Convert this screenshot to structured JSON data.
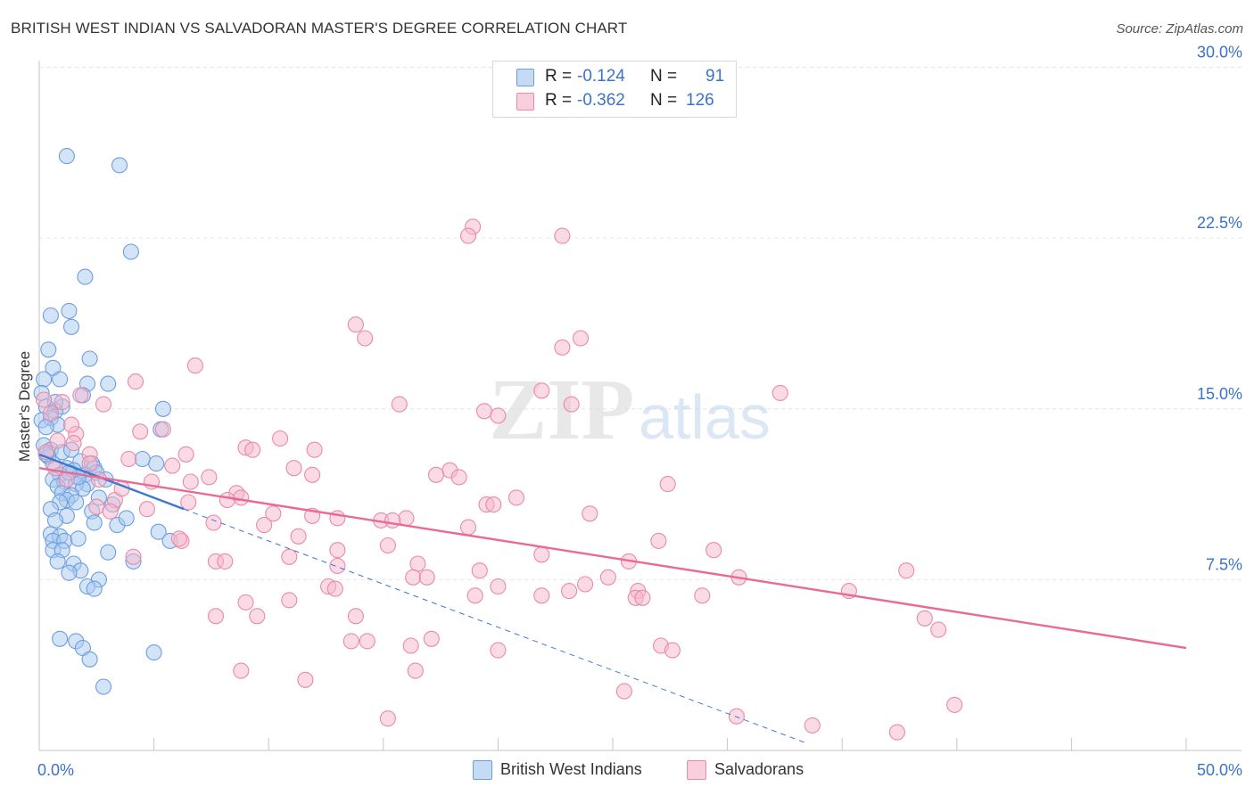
{
  "title": "BRITISH WEST INDIAN VS SALVADORAN MASTER'S DEGREE CORRELATION CHART",
  "source": "Source: ZipAtlas.com",
  "watermark": {
    "zip": "ZIP",
    "atlas": "atlas"
  },
  "colors": {
    "blue_fill": "#a9c9ef",
    "blue_stroke": "#6b9ee0",
    "blue_line": "#3a78d4",
    "pink_fill": "#f5b8cb",
    "pink_stroke": "#e88aa8",
    "pink_line": "#e86a95",
    "tick_text": "#3a73c9",
    "grid": "#e6e6e6"
  },
  "stats": {
    "blue": {
      "r_label": "R =",
      "r_value": "-0.124",
      "n_label": "N =",
      "n_value": "91"
    },
    "pink": {
      "r_label": "R =",
      "r_value": "-0.362",
      "n_label": "N =",
      "n_value": "126"
    }
  },
  "legend": {
    "blue": "British West Indians",
    "pink": "Salvadorans"
  },
  "chart_data": {
    "type": "scatter",
    "title": "BRITISH WEST INDIAN VS SALVADORAN MASTER'S DEGREE CORRELATION CHART",
    "xlabel": "",
    "ylabel": "Master's Degree",
    "xlim": [
      0,
      50
    ],
    "ylim": [
      0,
      31
    ],
    "x_tick_labels": [
      "0.0%",
      "50.0%"
    ],
    "y_ticks": [
      7.5,
      15.0,
      22.5,
      30.0
    ],
    "y_tick_labels": [
      "7.5%",
      "15.0%",
      "22.5%",
      "30.0%"
    ],
    "series": [
      {
        "name": "British West Indians",
        "color": "blue",
        "trend": {
          "x0": 0.0,
          "y0": 13.0,
          "x1": 6.3,
          "y1": 10.6
        },
        "trend_extension": {
          "x0": 6.3,
          "y0": 10.6,
          "x1": 33.5,
          "y1": 0.3
        },
        "points": [
          [
            1.2,
            26.1
          ],
          [
            3.5,
            25.7
          ],
          [
            4.0,
            21.9
          ],
          [
            2.0,
            20.8
          ],
          [
            0.5,
            19.1
          ],
          [
            1.3,
            19.3
          ],
          [
            1.4,
            18.6
          ],
          [
            0.4,
            17.6
          ],
          [
            2.2,
            17.2
          ],
          [
            0.6,
            16.8
          ],
          [
            0.2,
            16.3
          ],
          [
            0.9,
            16.3
          ],
          [
            3.0,
            16.1
          ],
          [
            2.1,
            16.1
          ],
          [
            1.9,
            15.6
          ],
          [
            0.1,
            15.7
          ],
          [
            0.3,
            15.1
          ],
          [
            1.0,
            15.1
          ],
          [
            5.4,
            15.0
          ],
          [
            0.7,
            14.9
          ],
          [
            0.5,
            14.6
          ],
          [
            0.8,
            14.3
          ],
          [
            0.1,
            14.5
          ],
          [
            0.3,
            14.2
          ],
          [
            5.3,
            14.1
          ],
          [
            0.2,
            13.4
          ],
          [
            0.5,
            13.2
          ],
          [
            1.0,
            13.1
          ],
          [
            1.4,
            13.2
          ],
          [
            0.4,
            12.9
          ],
          [
            0.6,
            12.6
          ],
          [
            1.8,
            12.7
          ],
          [
            2.3,
            12.6
          ],
          [
            5.1,
            12.6
          ],
          [
            4.5,
            12.8
          ],
          [
            1.2,
            12.4
          ],
          [
            2.4,
            12.4
          ],
          [
            1.5,
            12.3
          ],
          [
            2.0,
            12.1
          ],
          [
            0.9,
            12.1
          ],
          [
            1.7,
            12.0
          ],
          [
            2.5,
            12.2
          ],
          [
            0.6,
            11.9
          ],
          [
            1.1,
            11.8
          ],
          [
            2.1,
            11.7
          ],
          [
            0.8,
            11.6
          ],
          [
            1.6,
            11.7
          ],
          [
            1.9,
            11.5
          ],
          [
            1.0,
            11.3
          ],
          [
            1.4,
            11.2
          ],
          [
            1.2,
            11.0
          ],
          [
            2.6,
            11.1
          ],
          [
            0.9,
            10.9
          ],
          [
            1.6,
            10.9
          ],
          [
            3.2,
            10.8
          ],
          [
            0.5,
            10.6
          ],
          [
            2.3,
            10.5
          ],
          [
            1.2,
            10.3
          ],
          [
            0.7,
            10.1
          ],
          [
            2.4,
            10.0
          ],
          [
            3.4,
            9.9
          ],
          [
            0.5,
            9.5
          ],
          [
            0.9,
            9.4
          ],
          [
            5.2,
            9.6
          ],
          [
            5.7,
            9.2
          ],
          [
            0.6,
            9.2
          ],
          [
            1.1,
            9.2
          ],
          [
            1.7,
            9.3
          ],
          [
            0.6,
            8.8
          ],
          [
            1.0,
            8.8
          ],
          [
            3.0,
            8.7
          ],
          [
            0.8,
            8.3
          ],
          [
            4.1,
            8.3
          ],
          [
            1.5,
            8.2
          ],
          [
            1.8,
            7.9
          ],
          [
            1.3,
            7.8
          ],
          [
            2.6,
            7.5
          ],
          [
            2.1,
            7.2
          ],
          [
            2.4,
            7.1
          ],
          [
            0.9,
            4.9
          ],
          [
            1.6,
            4.8
          ],
          [
            1.9,
            4.5
          ],
          [
            5.0,
            4.3
          ],
          [
            2.2,
            4.0
          ],
          [
            2.8,
            2.8
          ],
          [
            1.7,
            12.0
          ],
          [
            0.3,
            13.0
          ],
          [
            1.3,
            12.2
          ],
          [
            0.7,
            15.3
          ],
          [
            2.9,
            11.9
          ],
          [
            3.8,
            10.2
          ]
        ]
      },
      {
        "name": "Salvadorans",
        "color": "pink",
        "trend": {
          "x0": 0.0,
          "y0": 12.4,
          "x1": 50.0,
          "y1": 4.5
        },
        "points": [
          [
            18.9,
            23.0
          ],
          [
            18.7,
            22.6
          ],
          [
            22.8,
            22.6
          ],
          [
            13.8,
            18.7
          ],
          [
            14.2,
            18.1
          ],
          [
            23.6,
            18.1
          ],
          [
            22.8,
            17.7
          ],
          [
            6.8,
            16.9
          ],
          [
            4.2,
            16.2
          ],
          [
            21.9,
            15.8
          ],
          [
            32.3,
            15.7
          ],
          [
            1.8,
            15.6
          ],
          [
            2.8,
            15.2
          ],
          [
            15.7,
            15.2
          ],
          [
            23.2,
            15.2
          ],
          [
            0.2,
            15.4
          ],
          [
            1.0,
            15.3
          ],
          [
            19.4,
            14.9
          ],
          [
            20.0,
            14.7
          ],
          [
            0.5,
            14.8
          ],
          [
            4.4,
            14.0
          ],
          [
            5.4,
            14.1
          ],
          [
            1.6,
            13.9
          ],
          [
            10.5,
            13.7
          ],
          [
            0.8,
            13.6
          ],
          [
            1.5,
            13.5
          ],
          [
            9.0,
            13.3
          ],
          [
            9.3,
            13.2
          ],
          [
            12.0,
            13.2
          ],
          [
            6.4,
            13.0
          ],
          [
            0.3,
            13.1
          ],
          [
            2.2,
            13.0
          ],
          [
            3.9,
            12.8
          ],
          [
            11.1,
            12.4
          ],
          [
            5.8,
            12.5
          ],
          [
            17.9,
            12.3
          ],
          [
            17.3,
            12.1
          ],
          [
            18.3,
            12.0
          ],
          [
            7.4,
            12.0
          ],
          [
            11.9,
            12.1
          ],
          [
            1.2,
            11.9
          ],
          [
            2.6,
            11.9
          ],
          [
            6.6,
            11.8
          ],
          [
            27.4,
            11.7
          ],
          [
            4.9,
            11.8
          ],
          [
            8.6,
            11.3
          ],
          [
            20.8,
            11.1
          ],
          [
            8.8,
            11.1
          ],
          [
            3.3,
            11.0
          ],
          [
            8.2,
            11.0
          ],
          [
            19.5,
            10.8
          ],
          [
            19.8,
            10.8
          ],
          [
            2.5,
            10.7
          ],
          [
            4.7,
            10.6
          ],
          [
            3.1,
            10.5
          ],
          [
            24.0,
            10.4
          ],
          [
            10.2,
            10.4
          ],
          [
            11.9,
            10.3
          ],
          [
            13.0,
            10.2
          ],
          [
            14.9,
            10.1
          ],
          [
            16.0,
            10.2
          ],
          [
            15.4,
            10.1
          ],
          [
            7.6,
            10.0
          ],
          [
            9.8,
            9.9
          ],
          [
            18.7,
            9.8
          ],
          [
            11.3,
            9.4
          ],
          [
            6.2,
            9.2
          ],
          [
            6.1,
            9.3
          ],
          [
            27.0,
            9.2
          ],
          [
            15.2,
            9.0
          ],
          [
            13.0,
            8.8
          ],
          [
            29.4,
            8.8
          ],
          [
            21.9,
            8.6
          ],
          [
            4.1,
            8.5
          ],
          [
            10.9,
            8.5
          ],
          [
            7.7,
            8.3
          ],
          [
            8.1,
            8.3
          ],
          [
            16.5,
            8.2
          ],
          [
            25.7,
            8.3
          ],
          [
            13.0,
            8.1
          ],
          [
            19.2,
            7.9
          ],
          [
            37.8,
            7.9
          ],
          [
            30.5,
            7.6
          ],
          [
            16.3,
            7.6
          ],
          [
            16.9,
            7.6
          ],
          [
            24.8,
            7.6
          ],
          [
            23.8,
            7.3
          ],
          [
            20.0,
            7.2
          ],
          [
            12.6,
            7.2
          ],
          [
            12.9,
            7.1
          ],
          [
            23.1,
            7.0
          ],
          [
            26.1,
            7.0
          ],
          [
            35.3,
            7.0
          ],
          [
            26.0,
            6.7
          ],
          [
            26.3,
            6.7
          ],
          [
            19.0,
            6.8
          ],
          [
            21.9,
            6.8
          ],
          [
            28.9,
            6.8
          ],
          [
            10.9,
            6.6
          ],
          [
            9.0,
            6.5
          ],
          [
            7.7,
            5.9
          ],
          [
            9.5,
            5.9
          ],
          [
            13.8,
            5.9
          ],
          [
            38.6,
            5.8
          ],
          [
            39.2,
            5.3
          ],
          [
            17.1,
            4.9
          ],
          [
            13.6,
            4.8
          ],
          [
            14.3,
            4.8
          ],
          [
            16.2,
            4.6
          ],
          [
            27.1,
            4.6
          ],
          [
            27.6,
            4.4
          ],
          [
            20.0,
            4.4
          ],
          [
            8.8,
            3.5
          ],
          [
            16.4,
            3.5
          ],
          [
            11.6,
            3.1
          ],
          [
            25.5,
            2.6
          ],
          [
            39.9,
            2.0
          ],
          [
            30.4,
            1.5
          ],
          [
            15.2,
            1.4
          ],
          [
            33.7,
            1.1
          ],
          [
            37.4,
            0.8
          ],
          [
            2.2,
            12.6
          ],
          [
            1.4,
            14.3
          ],
          [
            0.7,
            12.4
          ],
          [
            3.6,
            11.5
          ],
          [
            6.5,
            10.9
          ]
        ]
      }
    ]
  }
}
